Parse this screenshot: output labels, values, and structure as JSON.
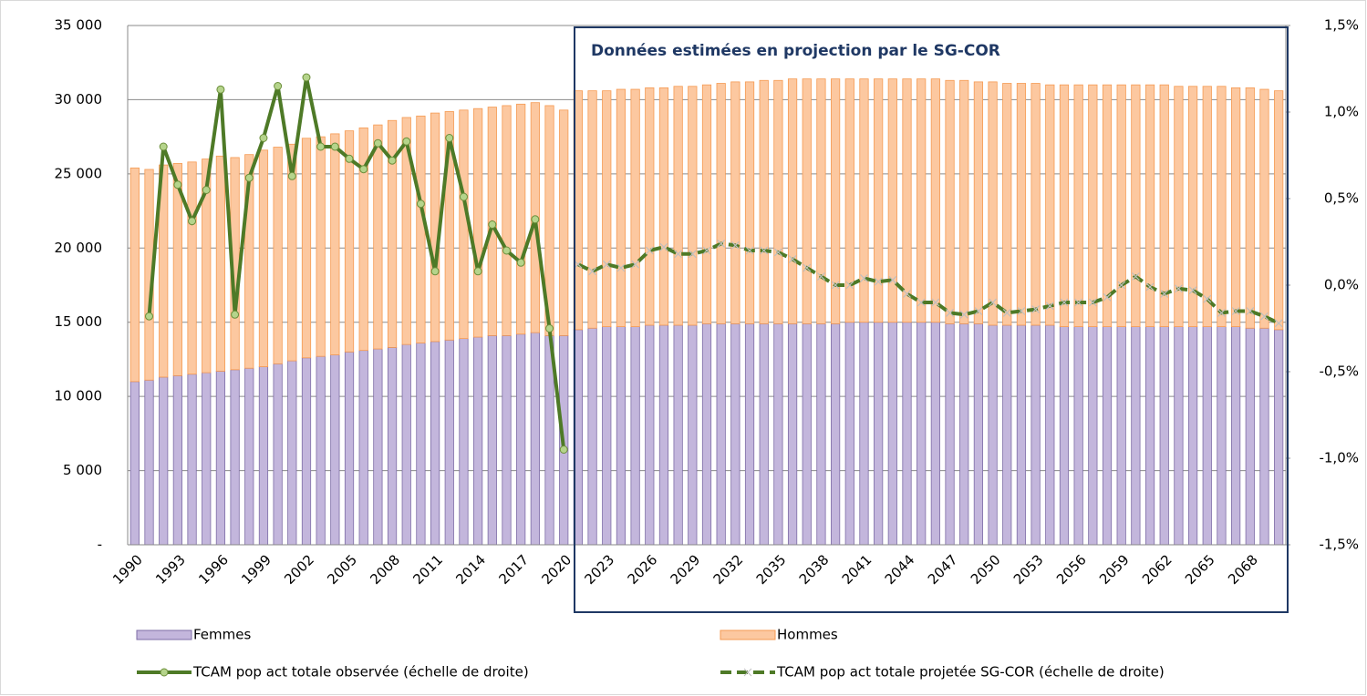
{
  "chart_data": {
    "type": "bar-line",
    "categories": [
      "1990",
      null,
      null,
      "1993",
      null,
      null,
      "1996",
      null,
      null,
      "1999",
      null,
      null,
      "2002",
      null,
      null,
      "2005",
      null,
      null,
      "2008",
      null,
      null,
      "2011",
      null,
      null,
      "2014",
      null,
      null,
      "2017",
      null,
      null,
      "2020",
      null,
      null,
      "2023",
      null,
      null,
      "2026",
      null,
      null,
      "2029",
      null,
      null,
      "2032",
      null,
      null,
      "2035",
      null,
      null,
      "2038",
      null,
      null,
      "2041",
      null,
      null,
      "2044",
      null,
      null,
      "2047",
      null,
      null,
      "2050",
      null,
      null,
      "2053",
      null,
      null,
      "2056",
      null,
      null,
      "2059",
      null,
      null,
      "2062",
      null,
      null,
      "2065",
      null,
      null,
      "2068",
      null,
      null
    ],
    "series": [
      {
        "name": "Femmes",
        "type": "bar",
        "color": "#c3b6dc",
        "values": [
          11000,
          11100,
          11300,
          11400,
          11500,
          11600,
          11700,
          11800,
          11900,
          12000,
          12200,
          12400,
          12600,
          12700,
          12800,
          13000,
          13100,
          13200,
          13300,
          13500,
          13600,
          13700,
          13800,
          13900,
          14000,
          14100,
          14100,
          14200,
          14300,
          14100,
          14100,
          14500,
          14600,
          14700,
          14700,
          14700,
          14800,
          14800,
          14800,
          14800,
          14900,
          14900,
          14900,
          14900,
          14900,
          14900,
          14900,
          14900,
          14900,
          14900,
          15000,
          15000,
          15000,
          15000,
          15000,
          15000,
          15000,
          14900,
          14900,
          14900,
          14800,
          14800,
          14800,
          14800,
          14800,
          14700,
          14700,
          14700,
          14700,
          14700,
          14700,
          14700,
          14700,
          14700,
          14700,
          14700,
          14700,
          14700,
          14600,
          14600,
          14500
        ]
      },
      {
        "name": "Hommes",
        "type": "bar",
        "color": "#fcc8a0",
        "values": [
          14400,
          14200,
          14300,
          14300,
          14300,
          14400,
          14500,
          14300,
          14400,
          14600,
          14600,
          14600,
          14800,
          14800,
          14900,
          14900,
          15000,
          15100,
          15300,
          15300,
          15300,
          15400,
          15400,
          15400,
          15400,
          15400,
          15500,
          15500,
          15500,
          15500,
          15200,
          16100,
          16000,
          15900,
          16000,
          16000,
          16000,
          16000,
          16100,
          16100,
          16100,
          16200,
          16300,
          16300,
          16400,
          16400,
          16500,
          16500,
          16500,
          16500,
          16400,
          16400,
          16400,
          16400,
          16400,
          16400,
          16400,
          16400,
          16400,
          16300,
          16400,
          16300,
          16300,
          16300,
          16200,
          16300,
          16300,
          16300,
          16300,
          16300,
          16300,
          16300,
          16300,
          16200,
          16200,
          16200,
          16200,
          16100,
          16200,
          16100,
          16100
        ]
      },
      {
        "name": "TCAM pop act totale observée (échelle de droite)",
        "type": "line",
        "axis": "y2",
        "color": "#4e7a27",
        "marker": "circle",
        "values": [
          null,
          -0.18,
          0.8,
          0.58,
          0.37,
          0.55,
          1.13,
          -0.17,
          0.62,
          0.85,
          1.15,
          0.63,
          1.2,
          0.8,
          0.8,
          0.73,
          0.67,
          0.82,
          0.72,
          0.83,
          0.47,
          0.08,
          0.85,
          0.51,
          0.08,
          0.35,
          0.2,
          0.13,
          0.38,
          -0.25,
          -0.95,
          null,
          null,
          null,
          null,
          null,
          null,
          null,
          null,
          null,
          null,
          null,
          null,
          null,
          null,
          null,
          null,
          null,
          null,
          null,
          null,
          null,
          null,
          null,
          null,
          null,
          null,
          null,
          null,
          null,
          null,
          null,
          null,
          null,
          null,
          null,
          null,
          null,
          null,
          null,
          null,
          null,
          null,
          null,
          null,
          null,
          null,
          null,
          null,
          null,
          null
        ]
      },
      {
        "name": "TCAM pop act totale projetée SG-COR (échelle de droite)",
        "type": "line",
        "axis": "y2",
        "color": "#4e7a27",
        "marker": "x",
        "dashed": true,
        "values": [
          null,
          null,
          null,
          null,
          null,
          null,
          null,
          null,
          null,
          null,
          null,
          null,
          null,
          null,
          null,
          null,
          null,
          null,
          null,
          null,
          null,
          null,
          null,
          null,
          null,
          null,
          null,
          null,
          null,
          null,
          null,
          0.12,
          0.08,
          0.12,
          0.1,
          0.12,
          0.2,
          0.22,
          0.18,
          0.18,
          0.2,
          0.24,
          0.23,
          0.2,
          0.2,
          0.19,
          0.15,
          0.1,
          0.05,
          0.0,
          0.0,
          0.04,
          0.02,
          0.03,
          -0.05,
          -0.1,
          -0.1,
          -0.16,
          -0.17,
          -0.15,
          -0.1,
          -0.16,
          -0.15,
          -0.14,
          -0.12,
          -0.1,
          -0.1,
          -0.1,
          -0.07,
          0.0,
          0.05,
          -0.01,
          -0.05,
          -0.02,
          -0.03,
          -0.08,
          -0.16,
          -0.15,
          -0.15,
          -0.18,
          -0.22
        ]
      }
    ],
    "ylim": [
      0,
      35000
    ],
    "yticks": [
      {
        "value": 0,
        "label": "-"
      },
      {
        "value": 5000,
        "label": "5 000"
      },
      {
        "value": 10000,
        "label": "10 000"
      },
      {
        "value": 15000,
        "label": "15 000"
      },
      {
        "value": 20000,
        "label": "20 000"
      },
      {
        "value": 25000,
        "label": "25 000"
      },
      {
        "value": 30000,
        "label": "30 000"
      },
      {
        "value": 35000,
        "label": "35 000"
      }
    ],
    "y2lim": [
      -1.5,
      1.5
    ],
    "y2ticks": [
      {
        "value": -1.5,
        "label": "-1,5%"
      },
      {
        "value": -1.0,
        "label": "-1,0%"
      },
      {
        "value": -0.5,
        "label": "-0,5%"
      },
      {
        "value": 0,
        "label": "0,0%"
      },
      {
        "value": 0.5,
        "label": "0,5%"
      },
      {
        "value": 1.0,
        "label": "1,0%"
      },
      {
        "value": 1.5,
        "label": "1,5%"
      }
    ],
    "grid": true,
    "legend": "bottom",
    "annotation": "Données estimées en projection par le SG-COR"
  }
}
